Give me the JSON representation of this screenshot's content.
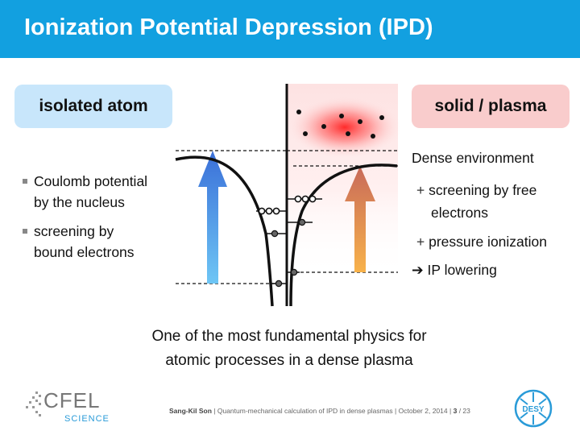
{
  "title": "Ionization Potential Depression (IPD)",
  "left_pill": "isolated atom",
  "right_pill": "solid / plasma",
  "left_bullets": [
    {
      "line1": "Coulomb potential",
      "line2": "by the nucleus"
    },
    {
      "line1": "screening by",
      "line2": "bound electrons"
    }
  ],
  "right_text": {
    "heading": "Dense environment",
    "item1_line1": "screening by free",
    "item1_line2": "electrons",
    "item2": "pressure ionization",
    "result": "IP lowering",
    "plus": "+",
    "arrow": "➔"
  },
  "caption": {
    "line1": "One of the most fundamental physics for",
    "line2": "atomic processes in a dense plasma"
  },
  "footer": {
    "author": "Sang-Kil Son",
    "sep": "|",
    "talk": "Quantum-mechanical calculation of IPD in dense plasmas",
    "date": "October 2, 2014",
    "page": "3",
    "total": "/ 23"
  },
  "logos": {
    "cfel": "CFEL",
    "science": "SCIENCE",
    "desy": "DESY"
  },
  "colors": {
    "title_bar": "#12a0e0",
    "left_pill": "#c8e6fb",
    "right_pill": "#f9cccc"
  }
}
